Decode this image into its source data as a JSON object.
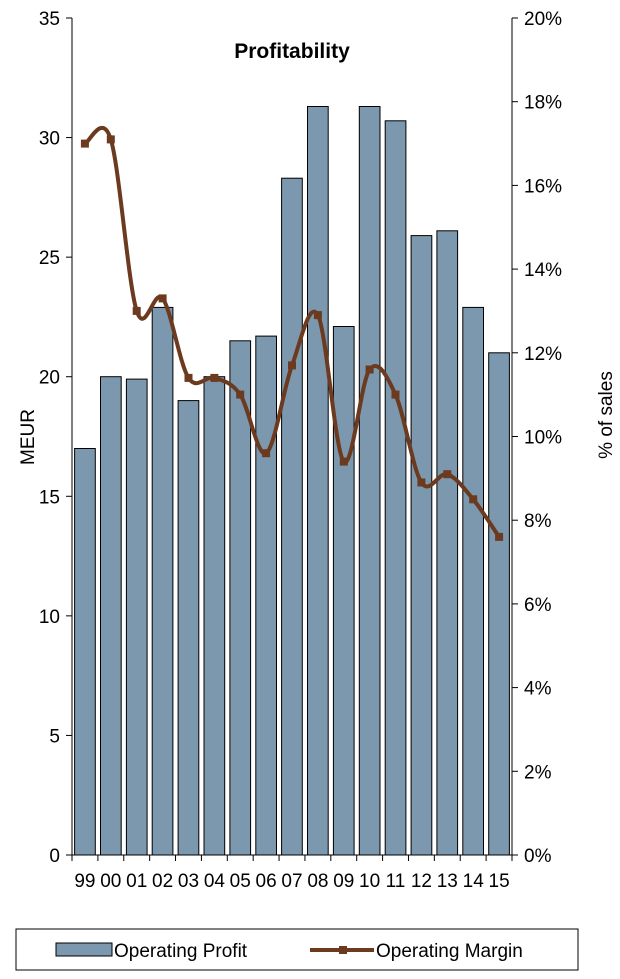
{
  "chart_data": {
    "type": "bar",
    "title": "Profitability",
    "categories": [
      "99",
      "00",
      "01",
      "02",
      "03",
      "04",
      "05",
      "06",
      "07",
      "08",
      "09",
      "10",
      "11",
      "12",
      "13",
      "14",
      "15"
    ],
    "series": [
      {
        "name": "Operating Profit",
        "type": "bar",
        "axis": "left",
        "color": "#7b98ae",
        "values": [
          17.0,
          20.0,
          19.9,
          22.9,
          19.0,
          20.0,
          21.5,
          21.7,
          28.3,
          31.3,
          22.1,
          31.3,
          30.7,
          25.9,
          26.1,
          22.9,
          21.0
        ]
      },
      {
        "name": "Operating Margin",
        "type": "line",
        "axis": "right",
        "unit": "%",
        "color": "#6b3a1f",
        "values": [
          17.0,
          17.1,
          13.0,
          13.3,
          11.4,
          11.4,
          11.0,
          9.6,
          11.7,
          12.9,
          9.4,
          11.6,
          11.0,
          8.9,
          9.1,
          8.5,
          7.6
        ]
      }
    ],
    "ylabel": "MEUR",
    "y2label": "% of sales",
    "ylim": [
      0,
      35
    ],
    "y2lim": [
      0,
      20
    ],
    "yticks": [
      "0",
      "5",
      "10",
      "15",
      "20",
      "25",
      "30",
      "35"
    ],
    "y2ticks": [
      "0%",
      "2%",
      "4%",
      "6%",
      "8%",
      "10%",
      "12%",
      "14%",
      "16%",
      "18%",
      "20%"
    ],
    "grid": false,
    "legend": "bottom"
  }
}
